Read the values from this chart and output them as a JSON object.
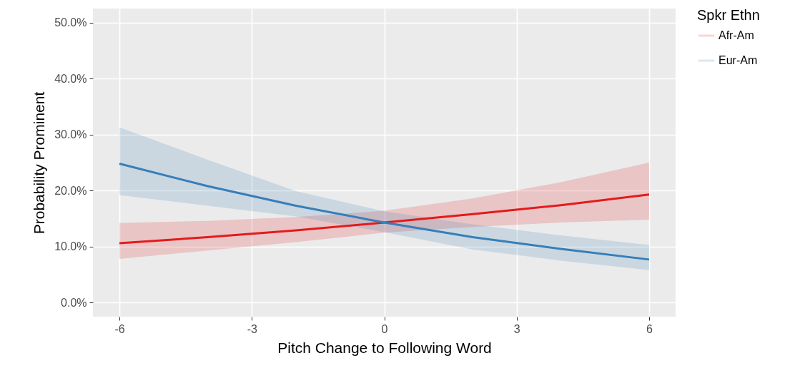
{
  "chart_data": {
    "type": "line",
    "xlabel": "Pitch Change to Following Word",
    "ylabel": "Probability Prominent",
    "legend_title": "Spkr Ethn",
    "x": [
      -6,
      -4,
      -2,
      0,
      2,
      4,
      6
    ],
    "series": [
      {
        "name": "Afr-Am",
        "color": "#e41a1c",
        "values": [
          10.6,
          11.7,
          12.9,
          14.3,
          15.8,
          17.4,
          19.3
        ],
        "lower": [
          7.8,
          9.3,
          10.8,
          12.5,
          13.5,
          14.3,
          14.8
        ],
        "upper": [
          14.2,
          14.6,
          15.3,
          16.4,
          18.6,
          21.5,
          25.0
        ]
      },
      {
        "name": "Eur-Am",
        "color": "#377eb8",
        "values": [
          24.8,
          20.8,
          17.3,
          14.3,
          11.7,
          9.6,
          7.7
        ],
        "lower": [
          19.2,
          17.3,
          15.4,
          12.6,
          9.5,
          7.5,
          5.8
        ],
        "upper": [
          31.3,
          25.5,
          19.9,
          16.3,
          14.0,
          12.0,
          10.3
        ]
      }
    ],
    "xlim": [
      -6.6,
      6.6
    ],
    "xticks": [
      -6,
      -3,
      0,
      3,
      6
    ],
    "ylim": [
      -2.5,
      52.5
    ],
    "yticks": [
      {
        "value": 0,
        "label": "0.0%"
      },
      {
        "value": 10,
        "label": "10.0%"
      },
      {
        "value": 20,
        "label": "20.0%"
      },
      {
        "value": 30,
        "label": "30.0%"
      },
      {
        "value": 40,
        "label": "40.0%"
      },
      {
        "value": 50,
        "label": "50.0%"
      }
    ],
    "grid": true,
    "legend": "right",
    "line_style": "solid"
  }
}
